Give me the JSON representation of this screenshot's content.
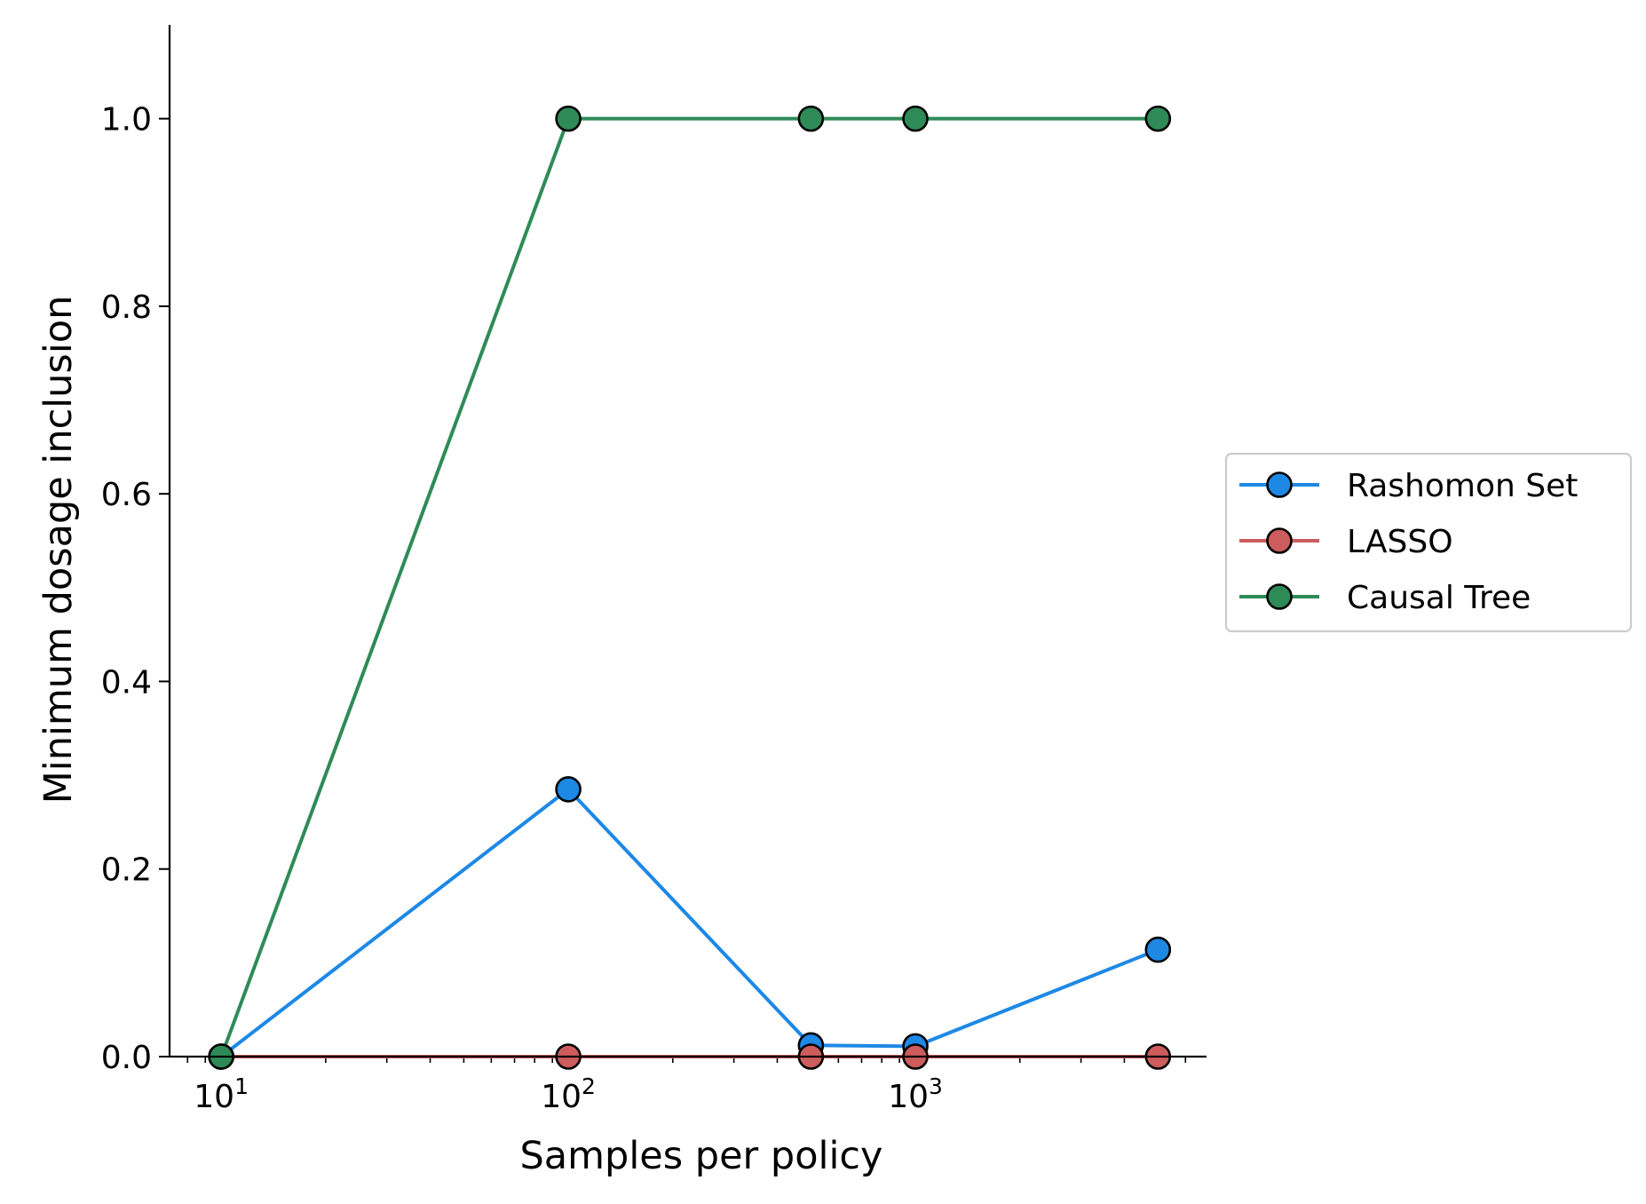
{
  "chart_data": {
    "type": "line",
    "title": "",
    "xlabel": "Samples per policy",
    "ylabel": "Minimum dosage inclusion",
    "xscale": "log",
    "xlim": [
      7.1,
      6900
    ],
    "ylim": [
      0,
      1.1
    ],
    "grid": false,
    "legend_position": "center-right, outside plot",
    "x_ticks": [
      {
        "value": 10,
        "base": "10",
        "exp": "1"
      },
      {
        "value": 100,
        "base": "10",
        "exp": "2"
      },
      {
        "value": 1000,
        "base": "10",
        "exp": "3"
      }
    ],
    "y_ticks": [
      {
        "value": 0.0,
        "label": "0.0"
      },
      {
        "value": 0.2,
        "label": "0.2"
      },
      {
        "value": 0.4,
        "label": "0.4"
      },
      {
        "value": 0.6,
        "label": "0.6"
      },
      {
        "value": 0.8,
        "label": "0.8"
      },
      {
        "value": 1.0,
        "label": "1.0"
      }
    ],
    "x": [
      10,
      100,
      500,
      1000,
      5000
    ],
    "series": [
      {
        "name": "Rashomon Set",
        "color": "#1E88E5",
        "values": [
          0.0,
          0.285,
          0.012,
          0.011,
          0.114
        ]
      },
      {
        "name": "LASSO",
        "color": "#CD5C5C",
        "values": [
          0.0,
          0.0,
          0.0,
          0.0,
          0.0
        ]
      },
      {
        "name": "Causal Tree",
        "color": "#2E8B57",
        "values": [
          0.0,
          1.0,
          1.0,
          1.0,
          1.0
        ]
      }
    ]
  }
}
